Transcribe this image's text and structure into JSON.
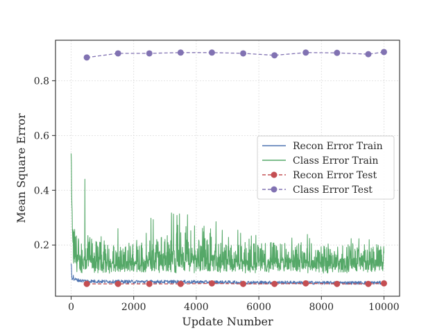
{
  "chart_data": {
    "type": "line",
    "title": "",
    "xlabel": "Update Number",
    "ylabel": "Mean Square Error",
    "xlim": [
      -500,
      10500
    ],
    "ylim": [
      0.013,
      0.948
    ],
    "xticks": [
      0,
      2000,
      4000,
      6000,
      8000,
      10000
    ],
    "yticks": [
      0.2,
      0.4,
      0.6,
      0.8
    ],
    "grid": true,
    "legend_position": "center-right",
    "series": [
      {
        "name": "Recon Error Train",
        "color": "#4C72B0",
        "style": "solid-noisy",
        "x": [
          0,
          30,
          100,
          300,
          600,
          1000,
          2000,
          3000,
          4000,
          5000,
          6000,
          7000,
          8000,
          9000,
          10000
        ],
        "y": [
          0.14,
          0.085,
          0.075,
          0.07,
          0.068,
          0.067,
          0.066,
          0.066,
          0.065,
          0.064,
          0.063,
          0.063,
          0.062,
          0.062,
          0.062
        ]
      },
      {
        "name": "Class Error Train",
        "color": "#55A868",
        "style": "solid-noisy",
        "x": [
          0,
          20,
          60,
          200,
          500,
          1000,
          1500,
          2000,
          2500,
          3000,
          3500,
          4000,
          4500,
          5000,
          5500,
          6000,
          6500,
          7000,
          7500,
          8000,
          8500,
          9000,
          9500,
          10000
        ],
        "y": [
          0.55,
          0.33,
          0.22,
          0.17,
          0.16,
          0.15,
          0.13,
          0.15,
          0.16,
          0.18,
          0.19,
          0.17,
          0.16,
          0.15,
          0.15,
          0.15,
          0.15,
          0.15,
          0.15,
          0.14,
          0.15,
          0.15,
          0.15,
          0.14
        ],
        "peaks": [
          0.55,
          0.27,
          0.26,
          0.22,
          0.25,
          0.3,
          0.32,
          0.34,
          0.27,
          0.29,
          0.27,
          0.25,
          0.25,
          0.24,
          0.23,
          0.24,
          0.23,
          0.24,
          0.23,
          0.22
        ]
      },
      {
        "name": "Recon Error Test",
        "color": "#C44E52",
        "style": "dashed-markers",
        "x": [
          500,
          1500,
          2500,
          3500,
          4500,
          5500,
          6500,
          7500,
          8500,
          9500,
          10000
        ],
        "y": [
          0.058,
          0.058,
          0.058,
          0.058,
          0.06,
          0.058,
          0.058,
          0.06,
          0.058,
          0.058,
          0.06
        ]
      },
      {
        "name": "Class Error Test",
        "color": "#8172B2",
        "style": "dashed-markers",
        "x": [
          500,
          1500,
          2500,
          3500,
          4500,
          5500,
          6500,
          7500,
          8500,
          9500,
          10000
        ],
        "y": [
          0.885,
          0.9,
          0.9,
          0.903,
          0.903,
          0.9,
          0.893,
          0.903,
          0.902,
          0.897,
          0.905
        ]
      }
    ]
  }
}
